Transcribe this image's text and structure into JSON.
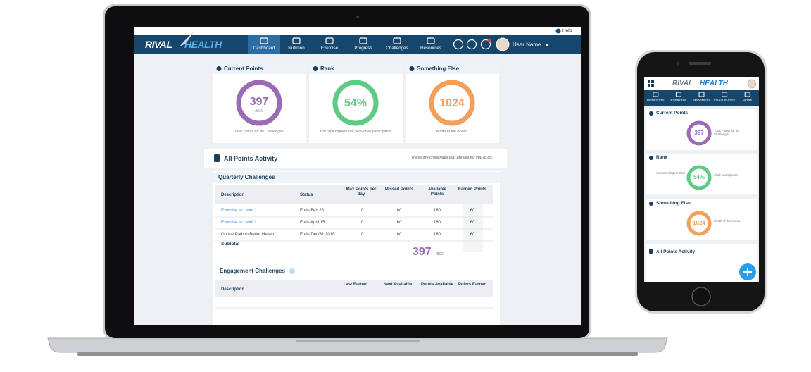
{
  "help": "Help",
  "logo": {
    "first": "RIVAL",
    "second": "HEALTH"
  },
  "laptop": {
    "nav": [
      "Dashboard",
      "Nutrition",
      "Exercise",
      "Progress",
      "Challenges",
      "Resources"
    ],
    "user_name": "User Name",
    "cards": [
      {
        "title": "Current Points",
        "value": "397",
        "total": "/800",
        "caption": "Total Points for all Challenges."
      },
      {
        "title": "Rank",
        "value": "54%",
        "caption": "You rank higher than 54% of all participants."
      },
      {
        "title": "Something Else",
        "value": "1024",
        "caption": "Width of the ocean."
      }
    ],
    "activity": {
      "title": "All Points Activity",
      "subtitle": "These are challenges that are live for you to do."
    },
    "quarterly": {
      "title": "Quarterly Challenges",
      "headers": [
        "Description",
        "Status",
        "Max Points per day",
        "Missed Points",
        "Available Points",
        "Earned Points"
      ],
      "rows": [
        [
          "Exercise to Level 1",
          "Ends Feb 26",
          10,
          60,
          180,
          60
        ],
        [
          "Exercise to Level 2",
          "Ends April 15",
          10,
          60,
          180,
          60
        ],
        [
          "On the Path to Better Health",
          "Ends Dec/31/2018",
          10,
          60,
          180,
          60
        ]
      ],
      "subtotal": {
        "label": "Subtotal",
        "value": "397",
        "total": "/800"
      }
    },
    "engagement": {
      "title": "Engagement Challenges",
      "headers": [
        "Description",
        "Last Earned",
        "Next Available",
        "Points Available",
        "Points Earned"
      ]
    }
  },
  "phone": {
    "nav": [
      "NUTRITION",
      "EXERCISE",
      "PROGRESS",
      "CHALLENGES",
      "MORE"
    ],
    "cards": [
      {
        "title": "Current Points",
        "value": "397",
        "caption": "Total Points for all Challenges."
      },
      {
        "title": "Rank",
        "value": "54%",
        "caption_left": "You rank higher than",
        "caption": "of all participants."
      },
      {
        "title": "Something Else",
        "value": "1024",
        "caption": "Width of the ocean."
      }
    ],
    "activity_title": "All Points Activity"
  }
}
